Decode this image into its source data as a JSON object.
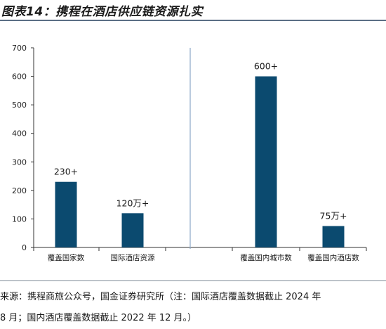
{
  "title": "图表14：携程在酒店供应链资源扎实",
  "source_lines": [
    "来源：携程商旅公众号，国金证券研究所（注：国际酒店覆盖数据截止 2024 年",
    "8 月；国内酒店覆盖数据截止 2022 年 12 月。）"
  ],
  "colors": {
    "bar": "#0b4a6f",
    "divider": "#8da8c8",
    "axis": "#333333",
    "title_rule": "#5b6f86"
  },
  "chart_data": {
    "type": "bar",
    "title": "",
    "xlabel": "",
    "ylabel": "",
    "ylim": [
      0,
      700
    ],
    "yticks": [
      0,
      100,
      200,
      300,
      400,
      500,
      600,
      700
    ],
    "grid": false,
    "legend": "none",
    "categories": [
      "覆盖国家数",
      "国际酒店资源",
      "覆盖国内城市数",
      "覆盖国内酒店数"
    ],
    "values": [
      230,
      120,
      600,
      75
    ],
    "data_labels": [
      "230+",
      "120万+",
      "600+",
      "75万+"
    ],
    "panels": [
      [
        0,
        1
      ],
      [
        2,
        3
      ]
    ]
  }
}
